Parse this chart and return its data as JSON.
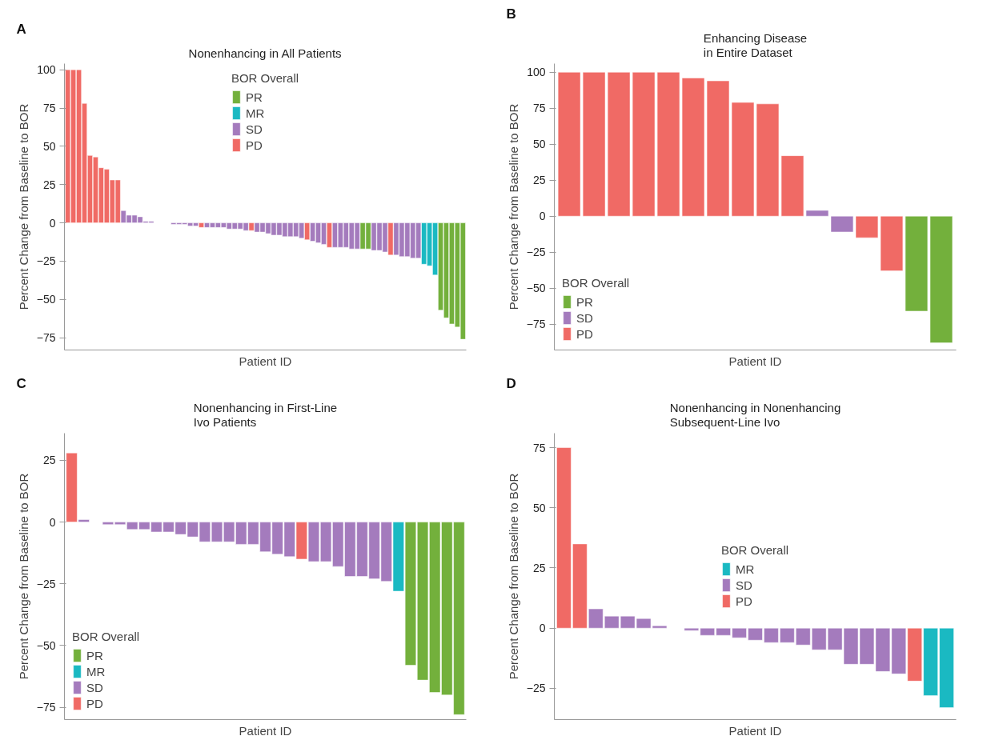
{
  "chart_data": [
    {
      "type": "bar",
      "title": "Nonenhancing in All Patients",
      "xlabel": "Patient ID",
      "ylabel": "Percent Change from Baseline to BOR",
      "legend_title": "BOR Overall",
      "legend": "top",
      "grid": false,
      "tick_labels": "y",
      "annotations": [
        "A"
      ],
      "categories": [
        null,
        null,
        null,
        null,
        null,
        null,
        null,
        null,
        null,
        null,
        null,
        null,
        null,
        null,
        null,
        null,
        null,
        null,
        null,
        null,
        null,
        null,
        null,
        null,
        null,
        null,
        null,
        null,
        null,
        null,
        null,
        null,
        null,
        null,
        null,
        null,
        null,
        null,
        null,
        null,
        null,
        null,
        null,
        null,
        null,
        null,
        null,
        null,
        null,
        null,
        null,
        null,
        null,
        null,
        null,
        null,
        null,
        null,
        null,
        null,
        null,
        null,
        null,
        null,
        null,
        null,
        null,
        null,
        null,
        null,
        null,
        null
      ],
      "ylim": [
        -83,
        104
      ],
      "yticks": [
        -75,
        -50,
        -25,
        0,
        25,
        50,
        75,
        100
      ],
      "series": [
        {
          "name": "PR",
          "color": "#73b03c",
          "values": [
            null,
            null,
            null,
            null,
            null,
            null,
            null,
            null,
            null,
            null,
            null,
            null,
            null,
            null,
            null,
            null,
            null,
            null,
            null,
            null,
            null,
            null,
            null,
            null,
            null,
            null,
            null,
            null,
            null,
            null,
            null,
            null,
            null,
            null,
            null,
            null,
            null,
            null,
            null,
            null,
            null,
            null,
            null,
            null,
            null,
            null,
            null,
            null,
            null,
            null,
            null,
            null,
            null,
            -17,
            -17,
            null,
            null,
            null,
            null,
            null,
            null,
            null,
            null,
            null,
            null,
            null,
            null,
            -57,
            -62,
            -66,
            -68,
            -76
          ]
        },
        {
          "name": "MR",
          "color": "#1ab9c2",
          "values": [
            null,
            null,
            null,
            null,
            null,
            null,
            null,
            null,
            null,
            null,
            null,
            null,
            null,
            null,
            null,
            null,
            null,
            null,
            null,
            null,
            null,
            null,
            null,
            null,
            null,
            null,
            null,
            null,
            null,
            null,
            null,
            null,
            null,
            null,
            null,
            null,
            null,
            null,
            null,
            null,
            null,
            null,
            null,
            null,
            null,
            null,
            null,
            null,
            null,
            null,
            null,
            null,
            null,
            null,
            null,
            null,
            null,
            null,
            null,
            null,
            null,
            null,
            null,
            null,
            -27,
            -28,
            -34,
            null,
            null,
            null,
            null,
            null
          ]
        },
        {
          "name": "SD",
          "color": "#a47bbd",
          "values": [
            null,
            null,
            null,
            null,
            null,
            null,
            null,
            null,
            null,
            null,
            8,
            5,
            5,
            4,
            1,
            1,
            null,
            null,
            null,
            -1,
            -1,
            -1,
            -2,
            -2,
            null,
            -3,
            -3,
            -3,
            -3,
            -4,
            -4,
            -4,
            -5,
            null,
            -6,
            -6,
            -7,
            -8,
            -8,
            -9,
            -9,
            -9,
            -10,
            null,
            -12,
            -13,
            -14,
            null,
            -16,
            -16,
            -16,
            -17,
            -17,
            null,
            null,
            -18,
            -18,
            -19,
            null,
            -21,
            -22,
            -22,
            -23,
            -23,
            null,
            null,
            null,
            null,
            null,
            null,
            null,
            null
          ]
        },
        {
          "name": "PD",
          "color": "#f06a65",
          "values": [
            100,
            100,
            100,
            78,
            44,
            43,
            36,
            35,
            28,
            28,
            null,
            null,
            null,
            null,
            null,
            null,
            null,
            null,
            null,
            null,
            null,
            null,
            null,
            null,
            -3,
            null,
            null,
            null,
            null,
            null,
            null,
            null,
            null,
            -5,
            null,
            null,
            null,
            null,
            null,
            null,
            null,
            null,
            null,
            -11,
            null,
            null,
            null,
            -16,
            null,
            null,
            null,
            null,
            null,
            null,
            null,
            null,
            null,
            null,
            -21,
            null,
            null,
            null,
            null,
            null,
            null,
            null,
            null,
            null,
            null,
            null,
            null,
            null
          ]
        }
      ]
    },
    {
      "type": "bar",
      "title": "Enhancing Disease\nin Entire Dataset",
      "xlabel": "Patient ID",
      "ylabel": "Percent Change from Baseline to BOR",
      "legend_title": "BOR Overall",
      "legend": "bottom left",
      "grid": false,
      "tick_labels": "y",
      "annotations": [
        "B"
      ],
      "categories": [
        null,
        null,
        null,
        null,
        null,
        null,
        null,
        null,
        null,
        null,
        null,
        null,
        null,
        null,
        null,
        null
      ],
      "ylim": [
        -93,
        106
      ],
      "yticks": [
        -75,
        -50,
        -25,
        0,
        25,
        50,
        75,
        100
      ],
      "series": [
        {
          "name": "PR",
          "color": "#73b03c",
          "values": [
            null,
            null,
            null,
            null,
            null,
            null,
            null,
            null,
            null,
            null,
            null,
            null,
            null,
            null,
            -66,
            -88
          ]
        },
        {
          "name": "SD",
          "color": "#a47bbd",
          "values": [
            null,
            null,
            null,
            null,
            null,
            null,
            null,
            null,
            null,
            null,
            4,
            -11,
            null,
            null,
            null,
            null
          ]
        },
        {
          "name": "PD",
          "color": "#f06a65",
          "values": [
            100,
            100,
            100,
            100,
            100,
            96,
            94,
            79,
            78,
            42,
            null,
            null,
            -15,
            -38,
            null,
            null
          ]
        }
      ]
    },
    {
      "type": "bar",
      "title": "Nonenhancing in First-Line\nIvo Patients",
      "xlabel": "Patient ID",
      "ylabel": "Percent Change from Baseline to BOR",
      "legend_title": "BOR Overall",
      "legend": "bottom left",
      "grid": false,
      "tick_labels": "y",
      "annotations": [
        "C"
      ],
      "categories": [
        null,
        null,
        null,
        null,
        null,
        null,
        null,
        null,
        null,
        null,
        null,
        null,
        null,
        null,
        null,
        null,
        null,
        null,
        null,
        null,
        null,
        null,
        null,
        null,
        null,
        null,
        null,
        null,
        null,
        null,
        null,
        null,
        null
      ],
      "ylim": [
        -80,
        36
      ],
      "yticks": [
        -75,
        -50,
        -25,
        0,
        25
      ],
      "series": [
        {
          "name": "PR",
          "color": "#73b03c",
          "values": [
            null,
            null,
            null,
            null,
            null,
            null,
            null,
            null,
            null,
            null,
            null,
            null,
            null,
            null,
            null,
            null,
            null,
            null,
            null,
            null,
            null,
            null,
            null,
            null,
            null,
            null,
            null,
            null,
            -58,
            -64,
            -69,
            -70,
            -78
          ]
        },
        {
          "name": "MR",
          "color": "#1ab9c2",
          "values": [
            null,
            null,
            null,
            null,
            null,
            null,
            null,
            null,
            null,
            null,
            null,
            null,
            null,
            null,
            null,
            null,
            null,
            null,
            null,
            null,
            null,
            null,
            null,
            null,
            null,
            null,
            null,
            -28,
            null,
            null,
            null,
            null,
            null
          ]
        },
        {
          "name": "SD",
          "color": "#a47bbd",
          "values": [
            null,
            1,
            null,
            -1,
            -1,
            -3,
            -3,
            -4,
            -4,
            -5,
            -6,
            -8,
            -8,
            -8,
            -9,
            -9,
            -12,
            -13,
            -14,
            null,
            -16,
            -16,
            -18,
            -22,
            -22,
            -23,
            -24,
            null,
            null,
            null,
            null,
            null,
            null
          ]
        },
        {
          "name": "PD",
          "color": "#f06a65",
          "values": [
            28,
            null,
            null,
            null,
            null,
            null,
            null,
            null,
            null,
            null,
            null,
            null,
            null,
            null,
            null,
            null,
            null,
            null,
            null,
            -15,
            null,
            null,
            null,
            null,
            null,
            null,
            null,
            null,
            null,
            null,
            null,
            null,
            null
          ]
        }
      ]
    },
    {
      "type": "bar",
      "title": "Nonenhancing in Nonenhancing\nSubsequent-Line Ivo",
      "xlabel": "Patient ID",
      "ylabel": "Percent Change from Baseline to BOR",
      "legend_title": "BOR Overall",
      "legend": "center",
      "grid": false,
      "tick_labels": "y",
      "annotations": [
        "D"
      ],
      "categories": [
        null,
        null,
        null,
        null,
        null,
        null,
        null,
        null,
        null,
        null,
        null,
        null,
        null,
        null,
        null,
        null,
        null,
        null,
        null,
        null,
        null,
        null,
        null,
        null,
        null
      ],
      "ylim": [
        -38,
        81
      ],
      "yticks": [
        -25,
        0,
        25,
        50,
        75
      ],
      "series": [
        {
          "name": "MR",
          "color": "#1ab9c2",
          "values": [
            null,
            null,
            null,
            null,
            null,
            null,
            null,
            null,
            null,
            null,
            null,
            null,
            null,
            null,
            null,
            null,
            null,
            null,
            null,
            null,
            null,
            null,
            null,
            -28,
            -33
          ]
        },
        {
          "name": "SD",
          "color": "#a47bbd",
          "values": [
            null,
            null,
            8,
            5,
            5,
            4,
            1,
            null,
            -1,
            -3,
            -3,
            -4,
            -5,
            -6,
            -6,
            -7,
            -9,
            -9,
            -15,
            -15,
            -18,
            -19,
            null,
            null,
            null
          ]
        },
        {
          "name": "PD",
          "color": "#f06a65",
          "values": [
            75,
            35,
            null,
            null,
            null,
            null,
            null,
            null,
            null,
            null,
            null,
            null,
            null,
            null,
            null,
            null,
            null,
            null,
            null,
            null,
            null,
            null,
            -22,
            null,
            null
          ]
        }
      ]
    }
  ]
}
